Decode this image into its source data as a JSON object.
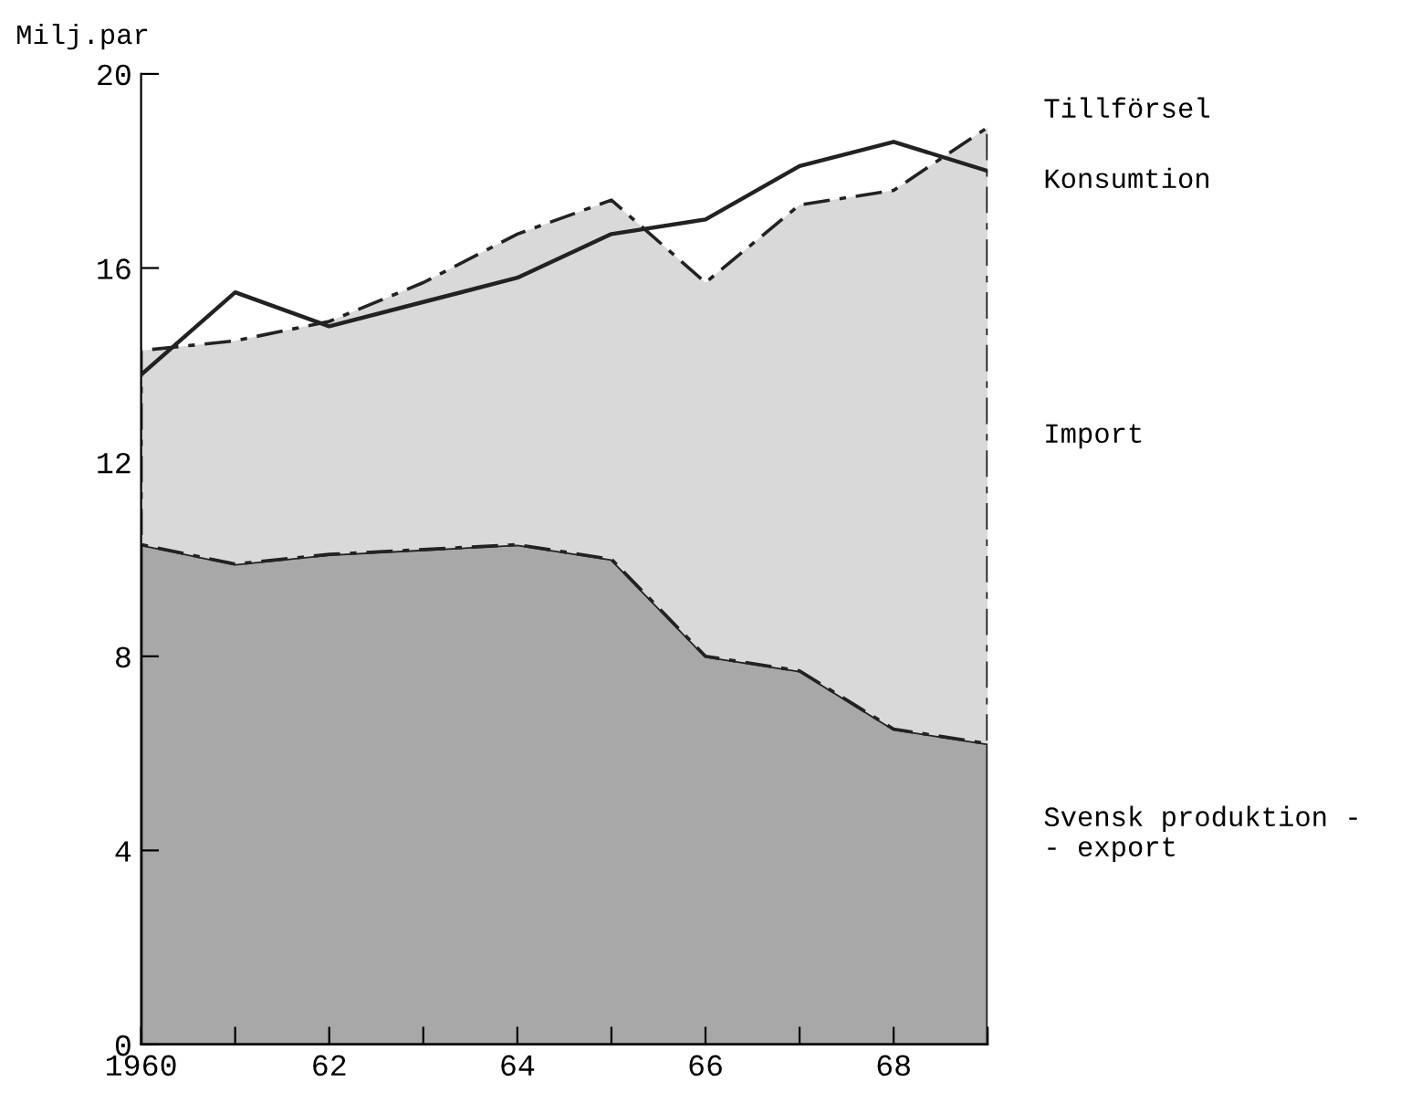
{
  "chart_data": {
    "type": "area",
    "stacked": true,
    "ylabel": "Milj.par",
    "x": [
      1960,
      1961,
      1962,
      1963,
      1964,
      1965,
      1966,
      1967,
      1968,
      1969
    ],
    "series": [
      {
        "name": "Svensk produktion -\n- export",
        "color": "#a8a8a8",
        "line_style": "solid",
        "values": [
          10.3,
          9.9,
          10.1,
          10.2,
          10.3,
          10.0,
          8.0,
          7.7,
          6.5,
          6.2
        ]
      },
      {
        "name": "Import",
        "color": "#d9d9d9",
        "line_style": "dashed",
        "values": [
          4.0,
          4.6,
          4.8,
          5.5,
          6.4,
          7.4,
          7.7,
          9.6,
          11.1,
          12.7
        ]
      },
      {
        "name": "Konsumtion",
        "type": "line",
        "color": "#222222",
        "line_style": "solid",
        "values": [
          13.8,
          15.5,
          14.8,
          15.3,
          15.8,
          16.7,
          17.0,
          18.1,
          18.6,
          18.0
        ]
      }
    ],
    "annotations": [
      "Tillförsel"
    ],
    "xlim": [
      1960,
      1969
    ],
    "ylim": [
      0,
      20
    ],
    "xticks": [
      1960,
      {
        "value": 1961,
        "label": null
      },
      {
        "value": 1962,
        "label": "62"
      },
      {
        "value": 1963,
        "label": null
      },
      {
        "value": 1964,
        "label": "64"
      },
      {
        "value": 1965,
        "label": null
      },
      {
        "value": 1966,
        "label": "66"
      },
      {
        "value": 1967,
        "label": null
      },
      {
        "value": 1968,
        "label": "68"
      },
      {
        "value": 1969,
        "label": null
      }
    ],
    "yticks": [
      0,
      4,
      8,
      12,
      16,
      20
    ],
    "grid": false,
    "legend": false
  }
}
